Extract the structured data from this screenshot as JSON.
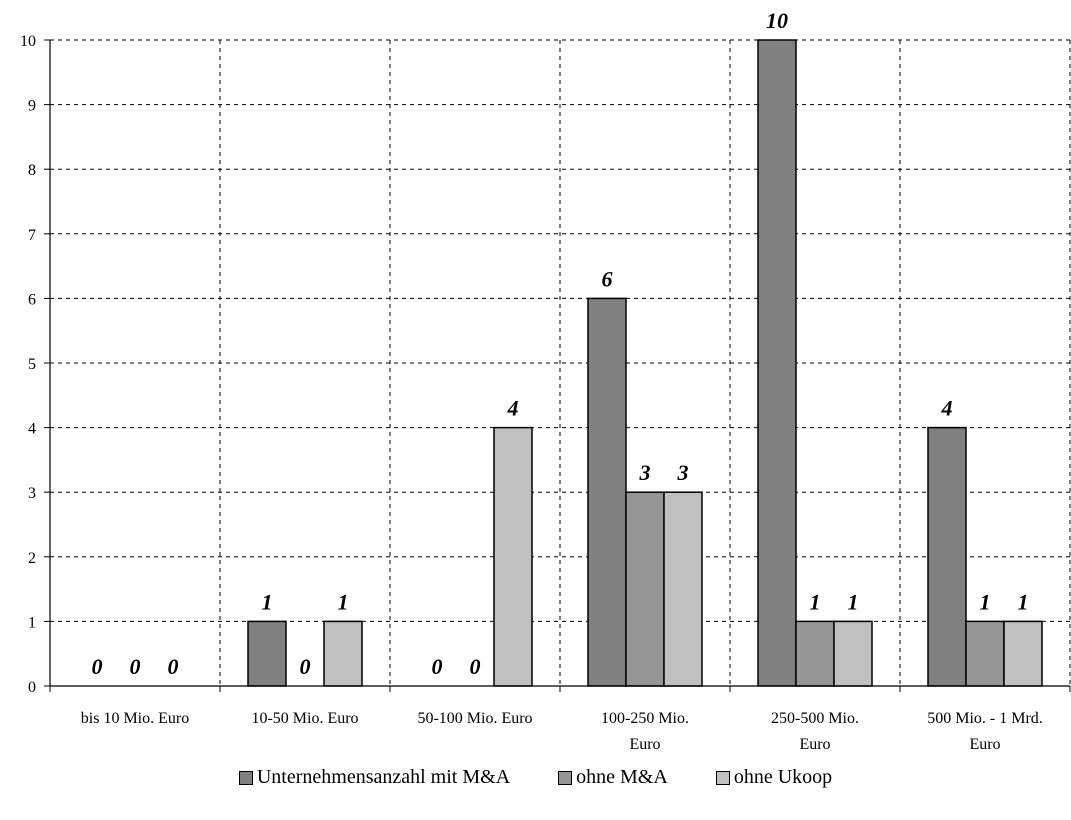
{
  "chart_data": {
    "type": "bar",
    "categories": [
      [
        "bis 10 Mio. Euro"
      ],
      [
        "10-50 Mio. Euro"
      ],
      [
        "50-100 Mio. Euro"
      ],
      [
        "100-250 Mio.",
        "Euro"
      ],
      [
        "250-500 Mio.",
        "Euro"
      ],
      [
        "500 Mio. - 1 Mrd.",
        "Euro"
      ]
    ],
    "series": [
      {
        "name": "Unternehmensanzahl mit M&A",
        "color": "#808080",
        "values": [
          0,
          1,
          0,
          6,
          10,
          4
        ]
      },
      {
        "name": "ohne M&A",
        "color": "#969696",
        "values": [
          0,
          0,
          0,
          3,
          1,
          1
        ]
      },
      {
        "name": "ohne Ukoop",
        "color": "#c0c0c0",
        "values": [
          0,
          1,
          4,
          3,
          1,
          1
        ]
      }
    ],
    "ylim": [
      0,
      10
    ],
    "yticks": [
      "0",
      "1",
      "2",
      "3",
      "4",
      "5",
      "6",
      "7",
      "8",
      "9",
      "10"
    ],
    "grid": true,
    "legend_position": "bottom"
  }
}
